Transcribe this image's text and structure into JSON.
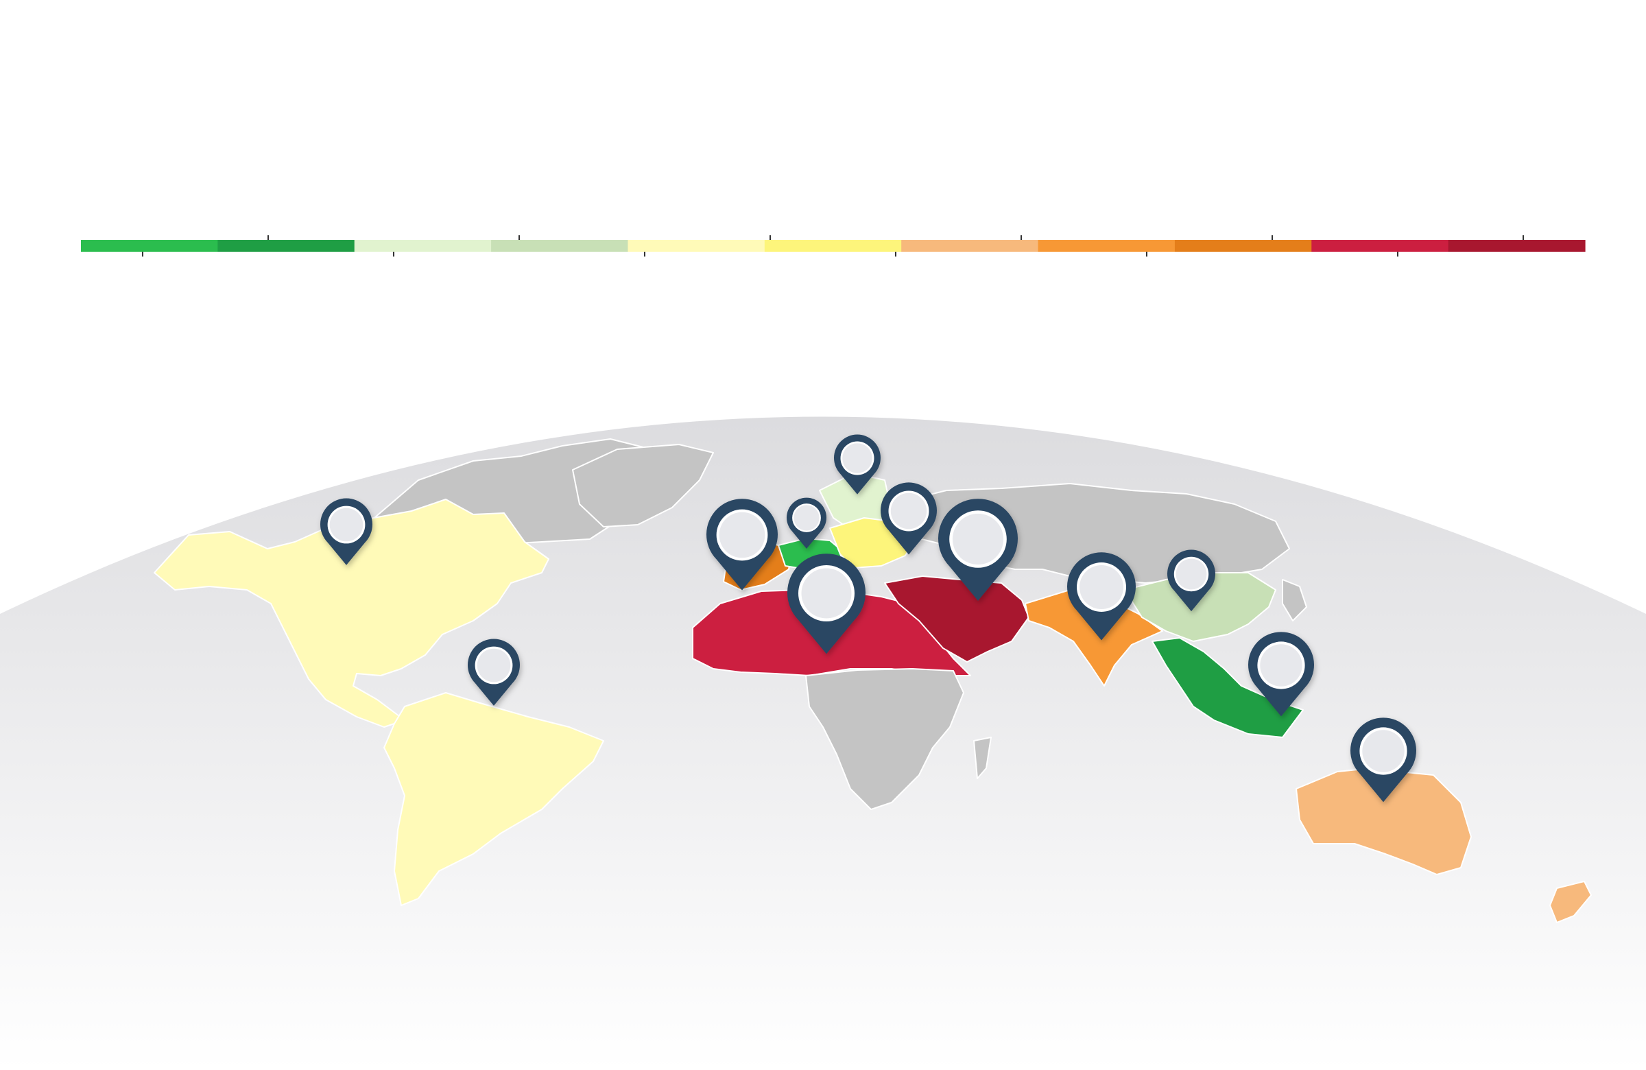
{
  "legend": {
    "segments": [
      {
        "color": "#2bbd4e"
      },
      {
        "color": "#1f9e44"
      },
      {
        "color": "#e1f3cf"
      },
      {
        "color": "#c8e0b6"
      },
      {
        "color": "#fffab8"
      },
      {
        "color": "#fdf57b"
      },
      {
        "color": "#f7b97c"
      },
      {
        "color": "#f79835"
      },
      {
        "color": "#e47e1a"
      },
      {
        "color": "#cc1f40"
      },
      {
        "color": "#a8172f"
      }
    ]
  },
  "colors": {
    "globe_top": "#dcdcdf",
    "globe_bottom": "#ffffff",
    "land_gray": "#c4c4c4",
    "north_america": "#fffab8",
    "south_america": "#fffab8",
    "north_africa": "#cc1f40",
    "middle_east": "#a8172f",
    "south_asia": "#f79835",
    "china": "#c8e0b6",
    "southeast_asia": "#1f9e44",
    "australia": "#f7b97c",
    "new_zealand": "#f7b97c",
    "eastern_europe": "#fdf57b",
    "scandinavia": "#e1f3cf",
    "iberia": "#e47e1a",
    "central_europe": "#2bbd4e",
    "pin_outer": "#2c4763",
    "pin_inner": "#e7e8ec"
  },
  "markers": [
    {
      "name": "north-america-pin",
      "icon": "map-pin-icon"
    },
    {
      "name": "south-america-pin",
      "icon": "map-pin-icon"
    },
    {
      "name": "iberia-pin",
      "icon": "map-pin-icon"
    },
    {
      "name": "central-europe-pin",
      "icon": "map-pin-icon"
    },
    {
      "name": "scandinavia-pin",
      "icon": "map-pin-icon"
    },
    {
      "name": "eastern-europe-pin",
      "icon": "map-pin-icon"
    },
    {
      "name": "middle-east-pin",
      "icon": "map-pin-icon"
    },
    {
      "name": "north-africa-pin",
      "icon": "map-pin-icon"
    },
    {
      "name": "south-asia-pin",
      "icon": "map-pin-icon"
    },
    {
      "name": "china-pin",
      "icon": "map-pin-icon"
    },
    {
      "name": "southeast-asia-pin",
      "icon": "map-pin-icon"
    },
    {
      "name": "australia-pin",
      "icon": "map-pin-icon"
    }
  ]
}
